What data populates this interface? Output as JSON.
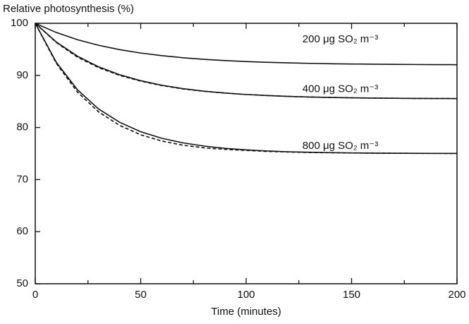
{
  "chart_data": {
    "type": "line",
    "title": "Relative photosynthesis (%)",
    "xlabel": "Time (minutes)",
    "x": [
      0,
      10,
      20,
      30,
      40,
      50,
      60,
      70,
      80,
      90,
      100,
      110,
      120,
      130,
      140,
      150,
      160,
      170,
      180,
      190,
      200
    ],
    "xlim": [
      0,
      200
    ],
    "xticks": [
      0,
      50,
      100,
      150,
      200
    ],
    "xminorticks": [
      25,
      75,
      125,
      175
    ],
    "ylim": [
      50,
      100
    ],
    "yticks": [
      50,
      60,
      70,
      80,
      90,
      100
    ],
    "series": [
      {
        "label": "200 μg SO₂ m⁻³",
        "color": "#111111",
        "dashed": false,
        "values": [
          100,
          98.23,
          96.85,
          95.78,
          94.94,
          94.29,
          93.79,
          93.39,
          93.08,
          92.84,
          92.66,
          92.51,
          92.4,
          92.31,
          92.24,
          92.19,
          92.15,
          92.11,
          92.09,
          92.07,
          92.05
        ]
      },
      {
        "label": "400 μg SO₂ m⁻³",
        "color": "#111111",
        "dashed": false,
        "values": [
          100,
          96.4,
          93.69,
          91.65,
          90.12,
          88.98,
          88.11,
          87.46,
          86.97,
          86.61,
          86.33,
          86.13,
          85.97,
          85.85,
          85.77,
          85.7,
          85.65,
          85.61,
          85.58,
          85.56,
          85.55
        ]
      },
      {
        "label": "800 μg SO₂ m⁻³",
        "color": "#111111",
        "dashed": false,
        "values": [
          100,
          92.49,
          87.24,
          83.56,
          81.0,
          79.19,
          77.93,
          77.05,
          76.44,
          76.0,
          75.7,
          75.49,
          75.34,
          75.24,
          75.17,
          75.12,
          75.08,
          75.06,
          75.04,
          75.03,
          75.02
        ]
      },
      {
        "color": "#111111",
        "dashed": true,
        "values": [
          100,
          96.3,
          93.5,
          91.5,
          90.0,
          88.9,
          88.05,
          87.4,
          86.95,
          86.6,
          86.33,
          86.13,
          85.97,
          85.85,
          85.77,
          85.7,
          85.65,
          85.61,
          85.58,
          85.56,
          85.55
        ]
      },
      {
        "color": "#111111",
        "dashed": true,
        "values": [
          100,
          92.3,
          86.8,
          83.0,
          80.4,
          78.6,
          77.4,
          76.6,
          76.1,
          75.8,
          75.6,
          75.4,
          75.3,
          75.2,
          75.15,
          75.1,
          75.07,
          75.05,
          75.03,
          75.02,
          75.01
        ]
      }
    ]
  }
}
